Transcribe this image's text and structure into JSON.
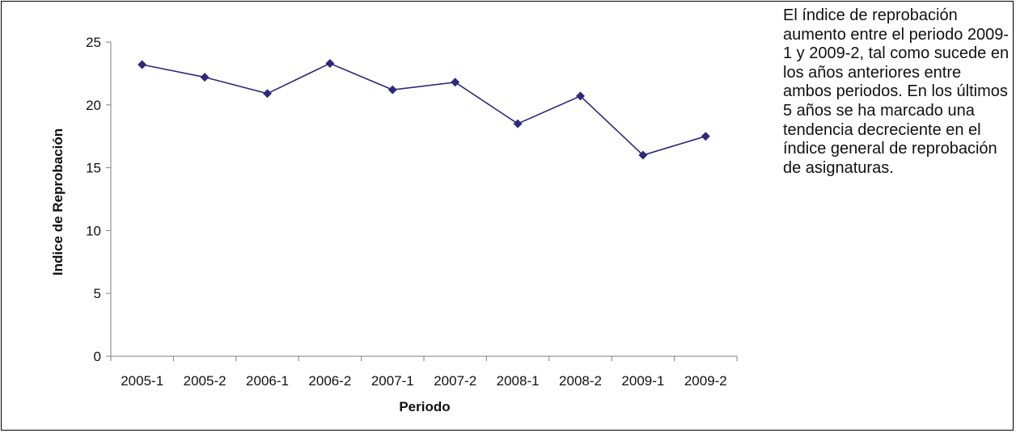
{
  "chart_data": {
    "type": "line",
    "title": "",
    "xlabel": "Periodo",
    "ylabel": "Indice de Reprobación",
    "ylim": [
      0,
      25
    ],
    "yticks": [
      0,
      5,
      10,
      15,
      20,
      25
    ],
    "grid": false,
    "categories": [
      "2005-1",
      "2005-2",
      "2006-1",
      "2006-2",
      "2007-1",
      "2007-2",
      "2008-1",
      "2008-2",
      "2009-1",
      "2009-2"
    ],
    "series": [
      {
        "values": [
          23.2,
          22.2,
          20.9,
          23.3,
          21.2,
          21.8,
          18.5,
          20.7,
          16.0,
          17.5
        ],
        "color": "#2e2a7a",
        "marker": "diamond"
      }
    ]
  },
  "annotation": "El índice de reprobación aumento entre el periodo 2009-1 y 2009-2, tal como sucede en los años anteriores entre ambos periodos. En los últimos 5 años se ha marcado una tendencia decreciente en el índice general de reprobación de asignaturas."
}
